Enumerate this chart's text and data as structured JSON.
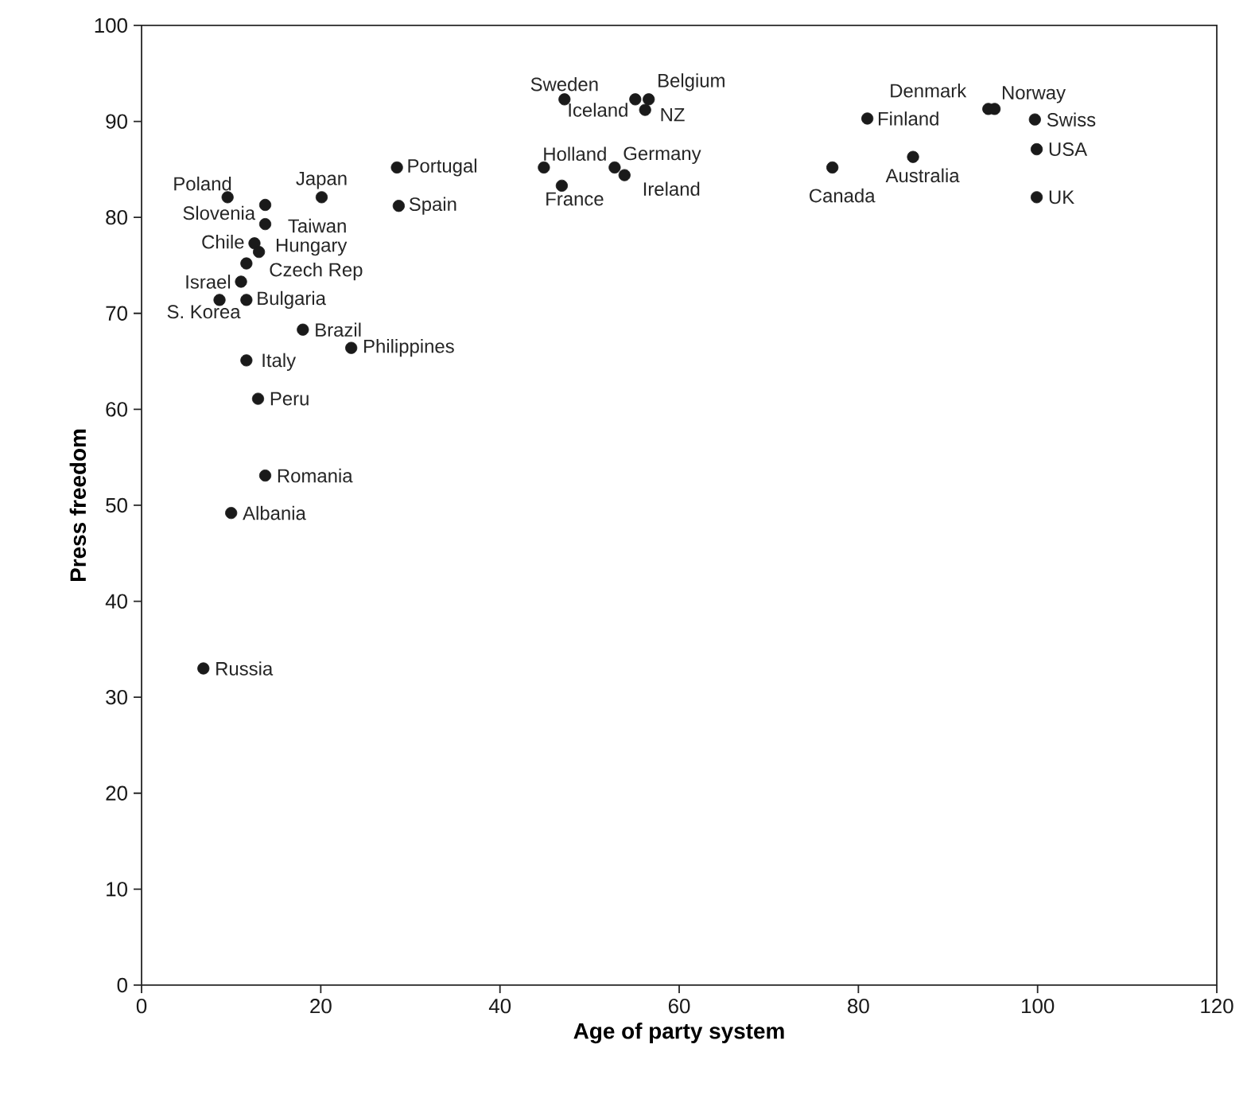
{
  "chart_data": {
    "type": "scatter",
    "xlabel": "Age of party system",
    "ylabel": "Press freedom",
    "xlim": [
      0,
      120
    ],
    "ylim": [
      0,
      100
    ],
    "xticks": [
      0,
      20,
      40,
      60,
      80,
      100,
      120
    ],
    "yticks": [
      0,
      10,
      20,
      30,
      40,
      50,
      60,
      70,
      80,
      90,
      100
    ],
    "series": [
      {
        "color": "#1a1a1a",
        "x": [
          9.6,
          13.8,
          13.8,
          20.1,
          28.5,
          28.7,
          12.6,
          13.1,
          11.7,
          11.1,
          8.7,
          11.7,
          18.0,
          23.4,
          11.7,
          13.0,
          13.8,
          10.0,
          6.9,
          47.2,
          55.1,
          56.6,
          56.2,
          44.9,
          46.9,
          52.8,
          53.9,
          77.1,
          86.1,
          81.0,
          94.5,
          95.2,
          99.7,
          99.9,
          99.9
        ],
        "values": [
          82.1,
          81.3,
          79.3,
          82.1,
          85.2,
          81.2,
          77.3,
          76.4,
          75.2,
          73.3,
          71.4,
          71.4,
          68.3,
          66.4,
          65.1,
          61.1,
          53.1,
          49.2,
          33.0,
          92.3,
          92.3,
          92.3,
          91.2,
          85.2,
          83.3,
          85.2,
          84.4,
          85.2,
          86.3,
          90.3,
          91.3,
          91.3,
          90.2,
          87.1,
          82.1
        ]
      }
    ],
    "annotations": [
      {
        "text": "Poland",
        "x": 9.6,
        "y": 82.1
      },
      {
        "text": "Slovenia",
        "x": 13.8,
        "y": 81.3
      },
      {
        "text": "Taiwan",
        "x": 13.8,
        "y": 79.3
      },
      {
        "text": "Japan",
        "x": 20.1,
        "y": 82.1
      },
      {
        "text": "Portugal",
        "x": 28.5,
        "y": 85.2
      },
      {
        "text": "Spain",
        "x": 28.7,
        "y": 81.2
      },
      {
        "text": "Chile",
        "x": 12.6,
        "y": 77.3
      },
      {
        "text": "Hungary",
        "x": 13.1,
        "y": 76.4
      },
      {
        "text": "Czech Rep",
        "x": 11.7,
        "y": 75.2
      },
      {
        "text": "Israel",
        "x": 11.1,
        "y": 73.3
      },
      {
        "text": "S. Korea",
        "x": 8.7,
        "y": 71.4
      },
      {
        "text": "Bulgaria",
        "x": 11.7,
        "y": 71.4
      },
      {
        "text": "Brazil",
        "x": 18.0,
        "y": 68.3
      },
      {
        "text": "Philippines",
        "x": 23.4,
        "y": 66.4
      },
      {
        "text": "Italy",
        "x": 11.7,
        "y": 65.1
      },
      {
        "text": "Peru",
        "x": 13.0,
        "y": 61.1
      },
      {
        "text": "Romania",
        "x": 13.8,
        "y": 53.1
      },
      {
        "text": "Albania",
        "x": 10.0,
        "y": 49.2
      },
      {
        "text": "Russia",
        "x": 6.9,
        "y": 33.0
      },
      {
        "text": "Sweden",
        "x": 47.2,
        "y": 92.3
      },
      {
        "text": "Iceland",
        "x": 55.1,
        "y": 92.3
      },
      {
        "text": "Belgium",
        "x": 56.6,
        "y": 92.3
      },
      {
        "text": "NZ",
        "x": 56.2,
        "y": 91.2
      },
      {
        "text": "Holland",
        "x": 44.9,
        "y": 85.2
      },
      {
        "text": "France",
        "x": 46.9,
        "y": 83.3
      },
      {
        "text": "Germany",
        "x": 52.8,
        "y": 85.2
      },
      {
        "text": "Ireland",
        "x": 53.9,
        "y": 84.4
      },
      {
        "text": "Canada",
        "x": 77.1,
        "y": 85.2
      },
      {
        "text": "Australia",
        "x": 86.1,
        "y": 86.3
      },
      {
        "text": "Finland",
        "x": 81.0,
        "y": 90.3
      },
      {
        "text": "Denmark",
        "x": 94.5,
        "y": 91.3
      },
      {
        "text": "Norway",
        "x": 95.2,
        "y": 91.3
      },
      {
        "text": "Swiss",
        "x": 99.7,
        "y": 90.2
      },
      {
        "text": "USA",
        "x": 99.9,
        "y": 87.1
      },
      {
        "text": "UK",
        "x": 99.9,
        "y": 82.1
      }
    ]
  }
}
